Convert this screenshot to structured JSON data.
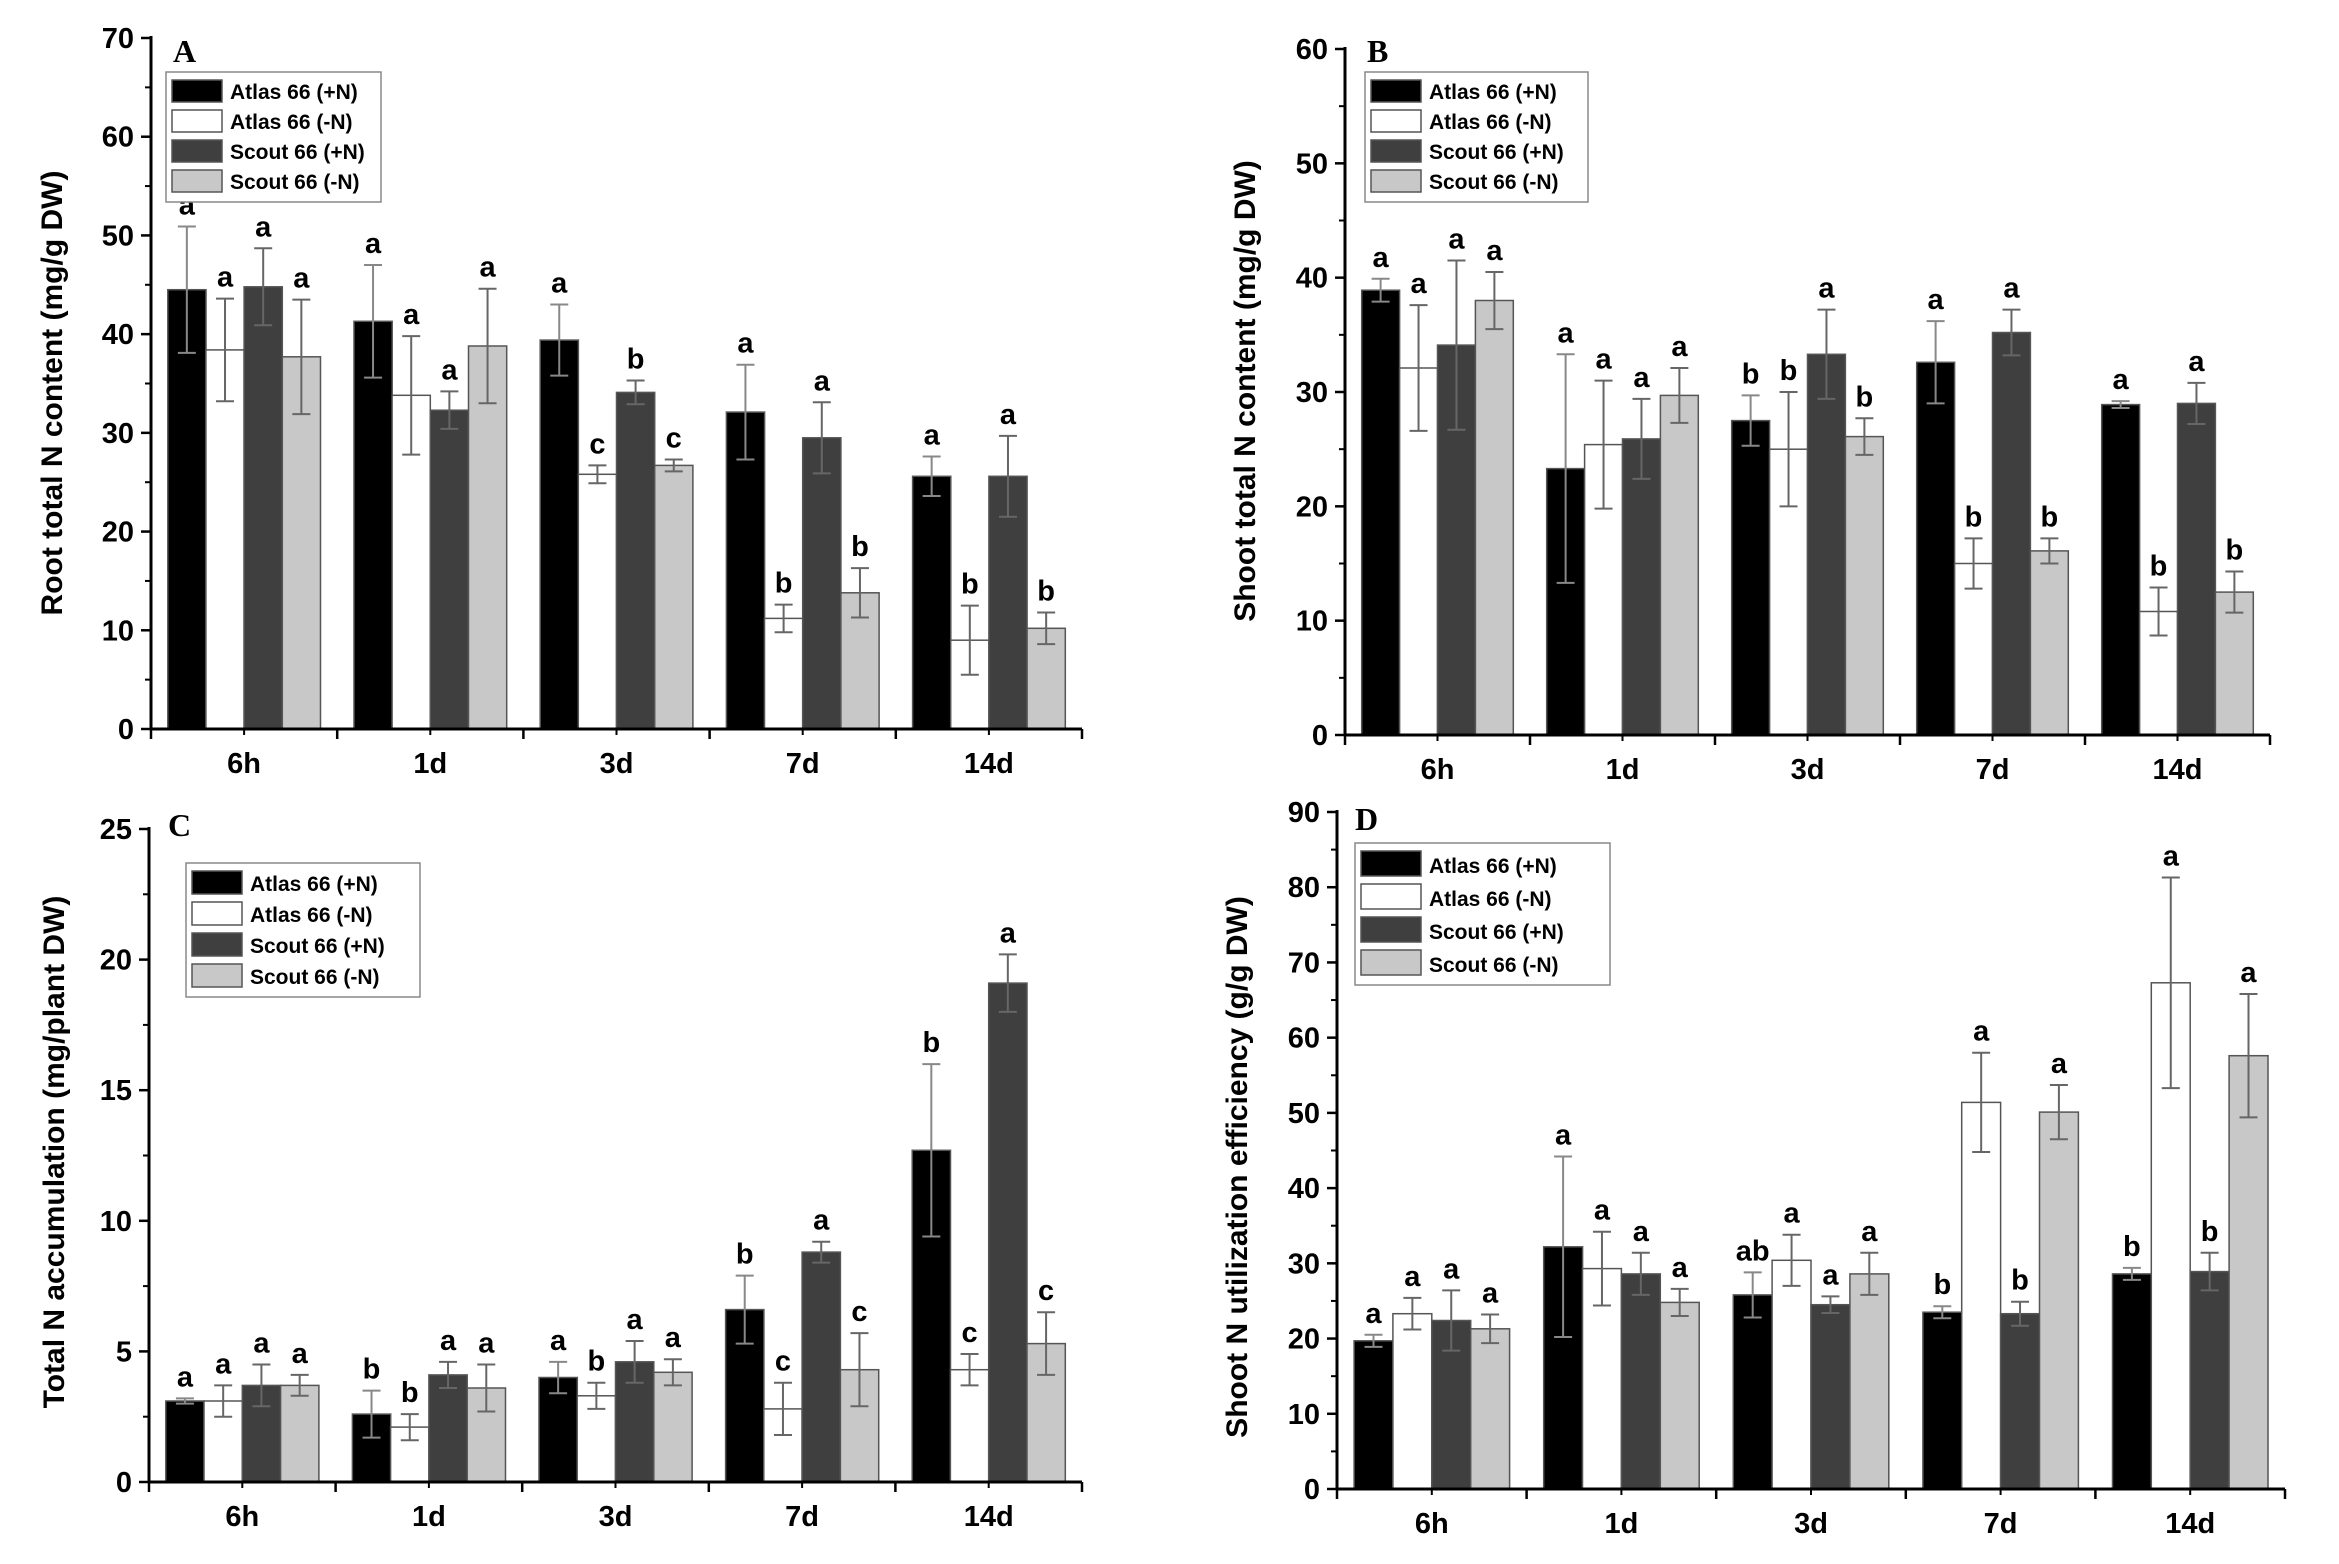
{
  "figure": {
    "colors": {
      "Atlas 66 (+N)": "#000000",
      "Atlas 66 (-N)": "#ffffff",
      "Scout 66 (+N)": "#3f3f3f",
      "Scout 66 (-N)": "#c8c8c8"
    }
  },
  "chart_data": [
    {
      "type": "bar",
      "panel": "A",
      "title": "",
      "xlabel": "",
      "ylabel": "Root total N content (mg/g DW)",
      "ylim": [
        0,
        70
      ],
      "yticks": [
        0,
        10,
        20,
        30,
        40,
        50,
        60,
        70
      ],
      "categories": [
        "6h",
        "1d",
        "3d",
        "7d",
        "14d"
      ],
      "legend": "top-left",
      "series": [
        {
          "name": "Atlas 66 (+N)",
          "values": [
            44.5,
            41.3,
            39.4,
            32.1,
            25.6
          ],
          "errors": [
            6.4,
            5.7,
            3.6,
            4.8,
            2.0
          ],
          "letters": [
            "a",
            "a",
            "a",
            "a",
            "a"
          ]
        },
        {
          "name": "Atlas 66 (-N)",
          "values": [
            38.4,
            33.8,
            25.8,
            11.2,
            9.0
          ],
          "errors": [
            5.2,
            6.0,
            0.9,
            1.4,
            3.5
          ],
          "letters": [
            "a",
            "a",
            "c",
            "b",
            "b"
          ]
        },
        {
          "name": "Scout 66 (+N)",
          "values": [
            44.8,
            32.3,
            34.1,
            29.5,
            25.6
          ],
          "errors": [
            3.9,
            1.9,
            1.2,
            3.6,
            4.1
          ],
          "letters": [
            "a",
            "a",
            "b",
            "a",
            "a"
          ]
        },
        {
          "name": "Scout 66 (-N)",
          "values": [
            37.7,
            38.8,
            26.7,
            13.8,
            10.2
          ],
          "errors": [
            5.8,
            5.8,
            0.6,
            2.5,
            1.6
          ],
          "letters": [
            "a",
            "a",
            "c",
            "b",
            "b"
          ]
        }
      ]
    },
    {
      "type": "bar",
      "panel": "B",
      "title": "",
      "xlabel": "",
      "ylabel": "Shoot total N content (mg/g DW)",
      "ylim": [
        0,
        60
      ],
      "yticks": [
        0,
        10,
        20,
        30,
        40,
        50,
        60
      ],
      "categories": [
        "6h",
        "1d",
        "3d",
        "7d",
        "14d"
      ],
      "legend": "top-left",
      "series": [
        {
          "name": "Atlas 66 (+N)",
          "values": [
            38.9,
            23.3,
            27.5,
            32.6,
            28.9
          ],
          "errors": [
            1.0,
            10.0,
            2.2,
            3.6,
            0.3
          ],
          "letters": [
            "a",
            "a",
            "b",
            "a",
            "a"
          ]
        },
        {
          "name": "Atlas 66 (-N)",
          "values": [
            32.1,
            25.4,
            25.0,
            15.0,
            10.8
          ],
          "errors": [
            5.5,
            5.6,
            5.0,
            2.2,
            2.1
          ],
          "letters": [
            "a",
            "a",
            "b",
            "b",
            "b"
          ]
        },
        {
          "name": "Scout 66 (+N)",
          "values": [
            34.1,
            25.9,
            33.3,
            35.2,
            29.0
          ],
          "errors": [
            7.4,
            3.5,
            3.9,
            2.0,
            1.8
          ],
          "letters": [
            "a",
            "a",
            "a",
            "a",
            "a"
          ]
        },
        {
          "name": "Scout 66 (-N)",
          "values": [
            38.0,
            29.7,
            26.1,
            16.1,
            12.5
          ],
          "errors": [
            2.5,
            2.4,
            1.6,
            1.1,
            1.8
          ],
          "letters": [
            "a",
            "a",
            "b",
            "b",
            "b"
          ]
        }
      ]
    },
    {
      "type": "bar",
      "panel": "C",
      "title": "",
      "xlabel": "",
      "ylabel": "Total N accumulation (mg/plant DW)",
      "ylim": [
        0,
        25
      ],
      "yticks": [
        0,
        5,
        10,
        15,
        20,
        25
      ],
      "categories": [
        "6h",
        "1d",
        "3d",
        "7d",
        "14d"
      ],
      "legend": "top-left",
      "series": [
        {
          "name": "Atlas 66 (+N)",
          "values": [
            3.1,
            2.6,
            4.0,
            6.6,
            12.7
          ],
          "errors": [
            0.1,
            0.9,
            0.6,
            1.3,
            3.3
          ],
          "letters": [
            "a",
            "b",
            "a",
            "b",
            "b"
          ]
        },
        {
          "name": "Atlas 66 (-N)",
          "values": [
            3.1,
            2.1,
            3.3,
            2.8,
            4.3
          ],
          "errors": [
            0.6,
            0.5,
            0.5,
            1.0,
            0.6
          ],
          "letters": [
            "a",
            "b",
            "b",
            "c",
            "c"
          ]
        },
        {
          "name": "Scout 66 (+N)",
          "values": [
            3.7,
            4.1,
            4.6,
            8.8,
            19.1
          ],
          "errors": [
            0.8,
            0.5,
            0.8,
            0.4,
            1.1
          ],
          "letters": [
            "a",
            "a",
            "a",
            "a",
            "a"
          ]
        },
        {
          "name": "Scout 66 (-N)",
          "values": [
            3.7,
            3.6,
            4.2,
            4.3,
            5.3
          ],
          "errors": [
            0.4,
            0.9,
            0.5,
            1.4,
            1.2
          ],
          "letters": [
            "a",
            "a",
            "a",
            "c",
            "c"
          ]
        }
      ]
    },
    {
      "type": "bar",
      "panel": "D",
      "title": "",
      "xlabel": "",
      "ylabel": "Shoot N utilization efficiency (g/g DW)",
      "ylim": [
        0,
        90
      ],
      "yticks": [
        0,
        10,
        20,
        30,
        40,
        50,
        60,
        70,
        80,
        90
      ],
      "categories": [
        "6h",
        "1d",
        "3d",
        "7d",
        "14d"
      ],
      "legend": "top-left",
      "series": [
        {
          "name": "Atlas 66 (+N)",
          "values": [
            19.7,
            32.2,
            25.8,
            23.5,
            28.6
          ],
          "errors": [
            0.8,
            12.0,
            3.0,
            0.8,
            0.8
          ],
          "letters": [
            "a",
            "a",
            "ab",
            "b",
            "b"
          ]
        },
        {
          "name": "Atlas 66 (-N)",
          "values": [
            23.3,
            29.3,
            30.4,
            51.4,
            67.3
          ],
          "errors": [
            2.1,
            4.9,
            3.4,
            6.6,
            14.0
          ],
          "letters": [
            "a",
            "a",
            "a",
            "a",
            "a"
          ]
        },
        {
          "name": "Scout 66 (+N)",
          "values": [
            22.4,
            28.6,
            24.5,
            23.3,
            28.9
          ],
          "errors": [
            4.0,
            2.8,
            1.1,
            1.6,
            2.5
          ],
          "letters": [
            "a",
            "a",
            "a",
            "b",
            "b"
          ]
        },
        {
          "name": "Scout 66 (-N)",
          "values": [
            21.3,
            24.8,
            28.6,
            50.1,
            57.6
          ],
          "errors": [
            1.9,
            1.8,
            2.8,
            3.6,
            8.2
          ],
          "letters": [
            "a",
            "a",
            "a",
            "a",
            "a"
          ]
        }
      ]
    }
  ]
}
